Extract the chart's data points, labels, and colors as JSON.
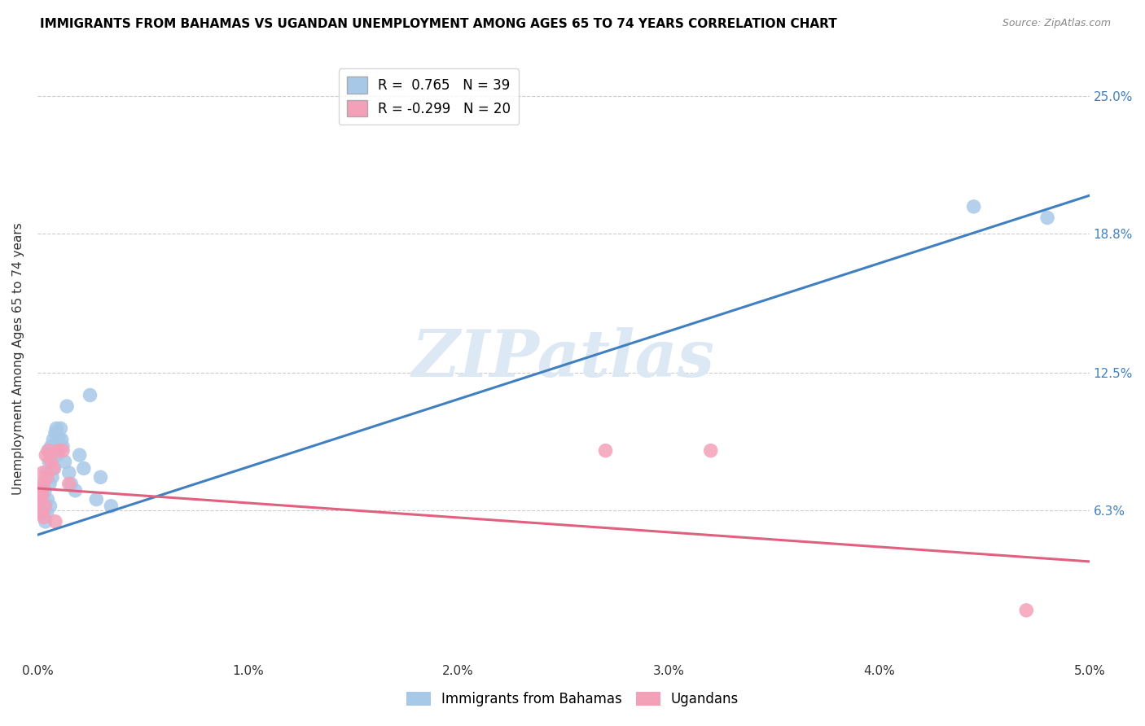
{
  "title": "IMMIGRANTS FROM BAHAMAS VS UGANDAN UNEMPLOYMENT AMONG AGES 65 TO 74 YEARS CORRELATION CHART",
  "source": "Source: ZipAtlas.com",
  "ylabel": "Unemployment Among Ages 65 to 74 years",
  "ytick_labels": [
    "6.3%",
    "12.5%",
    "18.8%",
    "25.0%"
  ],
  "ytick_values": [
    0.063,
    0.125,
    0.188,
    0.25
  ],
  "legend_blue_r": "R =  0.765",
  "legend_blue_n": "N = 39",
  "legend_pink_r": "R = -0.299",
  "legend_pink_n": "N = 20",
  "blue_color": "#a8c8e8",
  "pink_color": "#f4a0b8",
  "blue_line_color": "#4080c0",
  "pink_line_color": "#e06080",
  "watermark_color": "#dce8f4",
  "blue_scatter_x": [
    0.00015,
    0.0002,
    0.00025,
    0.00028,
    0.0003,
    0.00035,
    0.00038,
    0.00042,
    0.00045,
    0.00048,
    0.0005,
    0.00055,
    0.00058,
    0.0006,
    0.00065,
    0.00068,
    0.0007,
    0.00075,
    0.0008,
    0.00085,
    0.0009,
    0.00095,
    0.001,
    0.0011,
    0.00115,
    0.0012,
    0.0013,
    0.0014,
    0.0015,
    0.0016,
    0.0018,
    0.002,
    0.0022,
    0.0025,
    0.0028,
    0.003,
    0.0035,
    0.0445,
    0.048
  ],
  "blue_scatter_y": [
    0.068,
    0.075,
    0.062,
    0.07,
    0.065,
    0.072,
    0.058,
    0.08,
    0.062,
    0.068,
    0.09,
    0.085,
    0.075,
    0.065,
    0.092,
    0.088,
    0.078,
    0.095,
    0.082,
    0.098,
    0.1,
    0.088,
    0.096,
    0.1,
    0.095,
    0.092,
    0.085,
    0.11,
    0.08,
    0.075,
    0.072,
    0.088,
    0.082,
    0.115,
    0.068,
    0.078,
    0.065,
    0.2,
    0.195
  ],
  "pink_scatter_x": [
    0.0001,
    0.00015,
    0.00018,
    0.00022,
    0.00025,
    0.00028,
    0.0003,
    0.00035,
    0.0004,
    0.00045,
    0.00055,
    0.00065,
    0.00075,
    0.00085,
    0.001,
    0.0012,
    0.0015,
    0.027,
    0.032,
    0.047
  ],
  "pink_scatter_y": [
    0.068,
    0.062,
    0.072,
    0.07,
    0.08,
    0.075,
    0.06,
    0.065,
    0.088,
    0.078,
    0.09,
    0.085,
    0.082,
    0.058,
    0.09,
    0.09,
    0.075,
    0.09,
    0.09,
    0.018
  ],
  "xlim": [
    0.0,
    0.05
  ],
  "ylim": [
    -0.005,
    0.268
  ],
  "blue_line_x0": 0.0,
  "blue_line_y0": 0.052,
  "blue_line_x1": 0.05,
  "blue_line_y1": 0.205,
  "pink_line_x0": 0.0,
  "pink_line_y0": 0.073,
  "pink_line_x1": 0.05,
  "pink_line_y1": 0.04
}
